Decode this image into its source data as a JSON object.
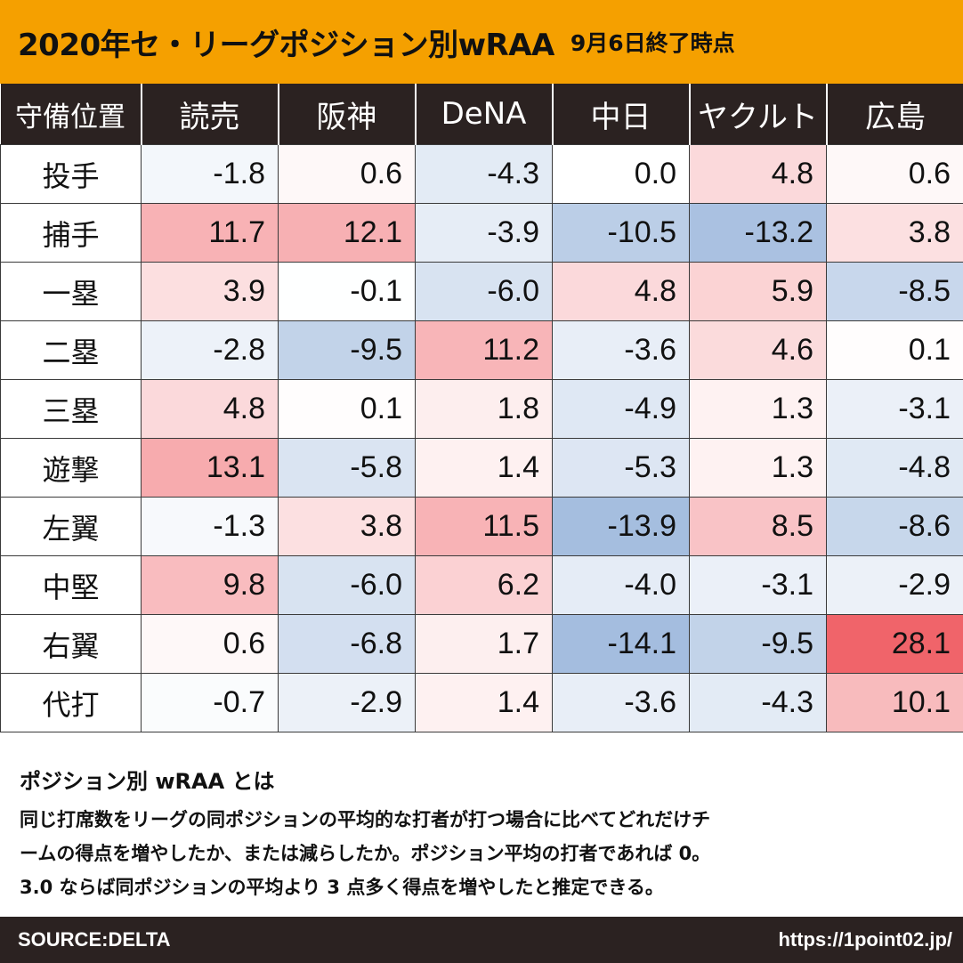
{
  "header": {
    "title": "2020年セ・リーグポジション別wRAA",
    "subtitle": "9月6日終了時点"
  },
  "chart_data": {
    "type": "table",
    "title": "2020年セ・リーグポジション別wRAA",
    "corner_label": "守備位置",
    "columns": [
      "読売",
      "阪神",
      "DeNA",
      "中日",
      "ヤクルト",
      "広島"
    ],
    "rows": [
      {
        "position": "投手",
        "values": [
          "-1.8",
          "0.6",
          "-4.3",
          "0.0",
          "4.8",
          "0.6"
        ]
      },
      {
        "position": "捕手",
        "values": [
          "11.7",
          "12.1",
          "-3.9",
          "-10.5",
          "-13.2",
          "3.8"
        ]
      },
      {
        "position": "一塁",
        "values": [
          "3.9",
          "-0.1",
          "-6.0",
          "4.8",
          "5.9",
          "-8.5"
        ]
      },
      {
        "position": "二塁",
        "values": [
          "-2.8",
          "-9.5",
          "11.2",
          "-3.6",
          "4.6",
          "0.1"
        ]
      },
      {
        "position": "三塁",
        "values": [
          "4.8",
          "0.1",
          "1.8",
          "-4.9",
          "1.3",
          "-3.1"
        ]
      },
      {
        "position": "遊撃",
        "values": [
          "13.1",
          "-5.8",
          "1.4",
          "-5.3",
          "1.3",
          "-4.8"
        ]
      },
      {
        "position": "左翼",
        "values": [
          "-1.3",
          "3.8",
          "11.5",
          "-13.9",
          "8.5",
          "-8.6"
        ]
      },
      {
        "position": "中堅",
        "values": [
          "9.8",
          "-6.0",
          "6.2",
          "-4.0",
          "-3.1",
          "-2.9"
        ]
      },
      {
        "position": "右翼",
        "values": [
          "0.6",
          "-6.8",
          "1.7",
          "-14.1",
          "-9.5",
          "28.1"
        ]
      },
      {
        "position": "代打",
        "values": [
          "-0.7",
          "-2.9",
          "1.4",
          "-3.6",
          "-4.3",
          "10.1"
        ]
      }
    ],
    "color_scale": {
      "positive": "#f0646a",
      "negative": "#a4bddf",
      "neutral": "#ffffff"
    }
  },
  "description": {
    "title": "ポジション別 wRAA とは",
    "line1": "同じ打席数をリーグの同ポジションの平均的な打者が打つ場合に比べてどれだけチ",
    "line2": "ームの得点を増やしたか、または減らしたか。ポジション平均の打者であれば 0。",
    "line3": "3.0 ならば同ポジションの平均より 3 点多く得点を増やしたと推定できる。"
  },
  "footer": {
    "source": "SOURCE:DELTA",
    "url": "https://1point02.jp/"
  }
}
